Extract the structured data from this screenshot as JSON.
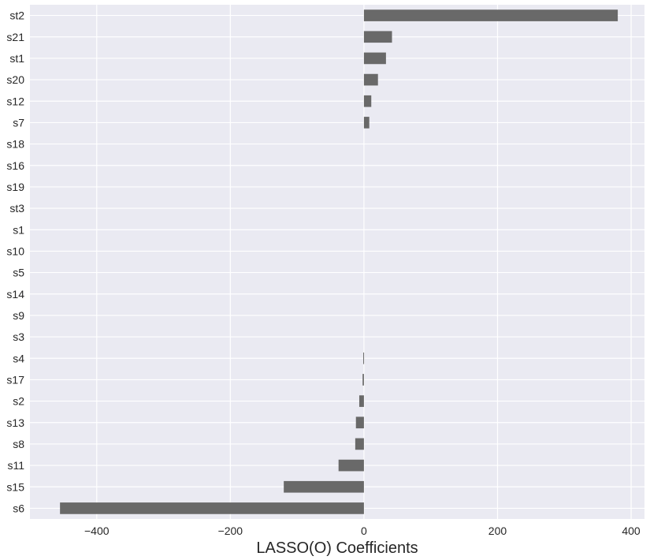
{
  "chart_data": {
    "type": "bar",
    "orientation": "horizontal",
    "title": "",
    "xlabel": "LASSO(O) Coefficients",
    "ylabel": "",
    "xlim": [
      -500,
      420
    ],
    "xticks": [
      -400,
      -200,
      0,
      200,
      400
    ],
    "xtick_labels": [
      "−400",
      "−200",
      "0",
      "200",
      "400"
    ],
    "grid": true,
    "legend": "none",
    "colors": {
      "bar": "#696969",
      "background": "#EAEAF2",
      "grid": "#ffffff"
    },
    "categories": [
      "st2",
      "s21",
      "st1",
      "s20",
      "s12",
      "s7",
      "s18",
      "s16",
      "s19",
      "st3",
      "s1",
      "s10",
      "s5",
      "s14",
      "s9",
      "s3",
      "s4",
      "s17",
      "s2",
      "s13",
      "s8",
      "s11",
      "s15",
      "s6"
    ],
    "values": [
      380,
      42,
      33,
      21,
      11,
      8,
      0,
      0,
      0,
      0,
      0,
      0,
      0,
      0,
      0,
      0,
      -1,
      -2,
      -7,
      -12,
      -13,
      -38,
      -120,
      -455
    ]
  }
}
